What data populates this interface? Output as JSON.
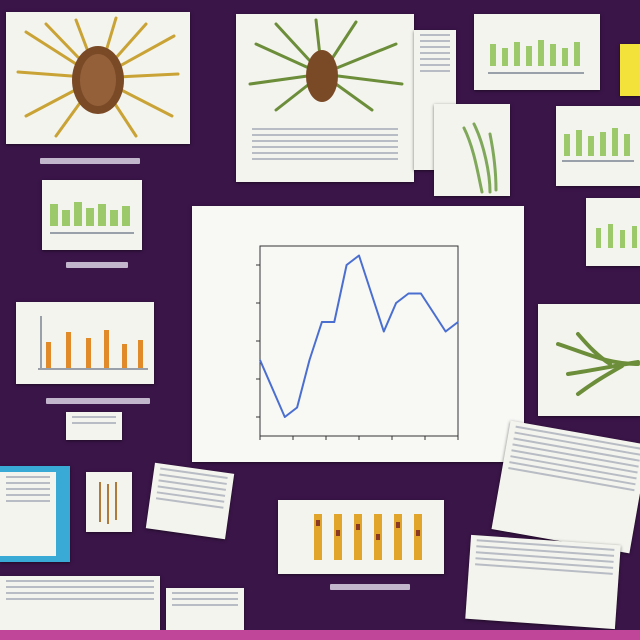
{
  "chart_data": {
    "type": "line",
    "title": "",
    "x": [
      1,
      2,
      3,
      4,
      5,
      6,
      7,
      8,
      9,
      10,
      11,
      12,
      13,
      14,
      15,
      16,
      17
    ],
    "series": [
      {
        "values": [
          10,
          7,
          4,
          5,
          10,
          14,
          14,
          20,
          21,
          17,
          13,
          16,
          17,
          17,
          15,
          13,
          14
        ]
      }
    ],
    "xlabel": "",
    "ylabel": "",
    "ylim": [
      2,
      22
    ],
    "grid": false,
    "line_color": "#4a6fd0"
  },
  "colors": {
    "board": "#3a1548",
    "accent_bar": "#c0469a",
    "paper": "#f4f4ee",
    "specimen_brown": "#7a4a26",
    "specimen_gold": "#c9a335",
    "specimen_green": "#6c8e3a",
    "bar_green": "#9cc96a",
    "bar_orange": "#e08a2a",
    "folder_blue": "#39a9d6",
    "note_yellow": "#f3e23a"
  },
  "icons": [
    "specimen-illustration",
    "bar-chart-thumbnail",
    "line-chart",
    "document-page",
    "folder"
  ]
}
